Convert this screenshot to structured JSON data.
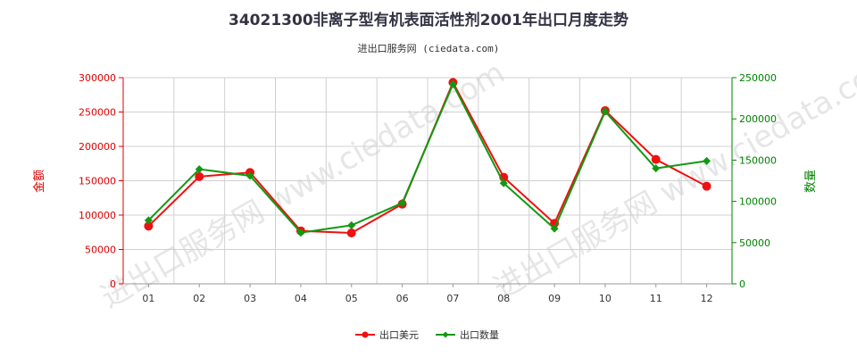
{
  "chart_data": {
    "type": "line",
    "title": "34021300非离子型有机表面活性剂2001年出口月度走势",
    "subtitle": "进出口服务网 (ciedata.com)",
    "categories": [
      "01",
      "02",
      "03",
      "04",
      "05",
      "06",
      "07",
      "08",
      "09",
      "10",
      "11",
      "12"
    ],
    "y_left": {
      "label": "金额",
      "ylim": [
        0,
        300000
      ],
      "ticks": [
        0,
        50000,
        100000,
        150000,
        200000,
        250000,
        300000
      ],
      "color": "#dd0000"
    },
    "y_right": {
      "label": "数量",
      "ylim": [
        0,
        250000
      ],
      "ticks": [
        0,
        50000,
        100000,
        150000,
        200000,
        250000
      ],
      "color": "#008000"
    },
    "series": [
      {
        "name": "出口美元",
        "axis": "left",
        "color": "#ee1111",
        "values": [
          84000,
          156000,
          162000,
          77000,
          74000,
          116000,
          293000,
          155000,
          88000,
          252000,
          181000,
          142000
        ]
      },
      {
        "name": "出口数量",
        "axis": "right",
        "color": "#119911",
        "values": [
          77000,
          139000,
          131000,
          62000,
          71000,
          98000,
          242000,
          122000,
          67000,
          209000,
          140000,
          149000
        ]
      }
    ],
    "grid": true,
    "legend_position": "bottom-center",
    "watermark": "进出口服务网 www.ciedata.com"
  }
}
